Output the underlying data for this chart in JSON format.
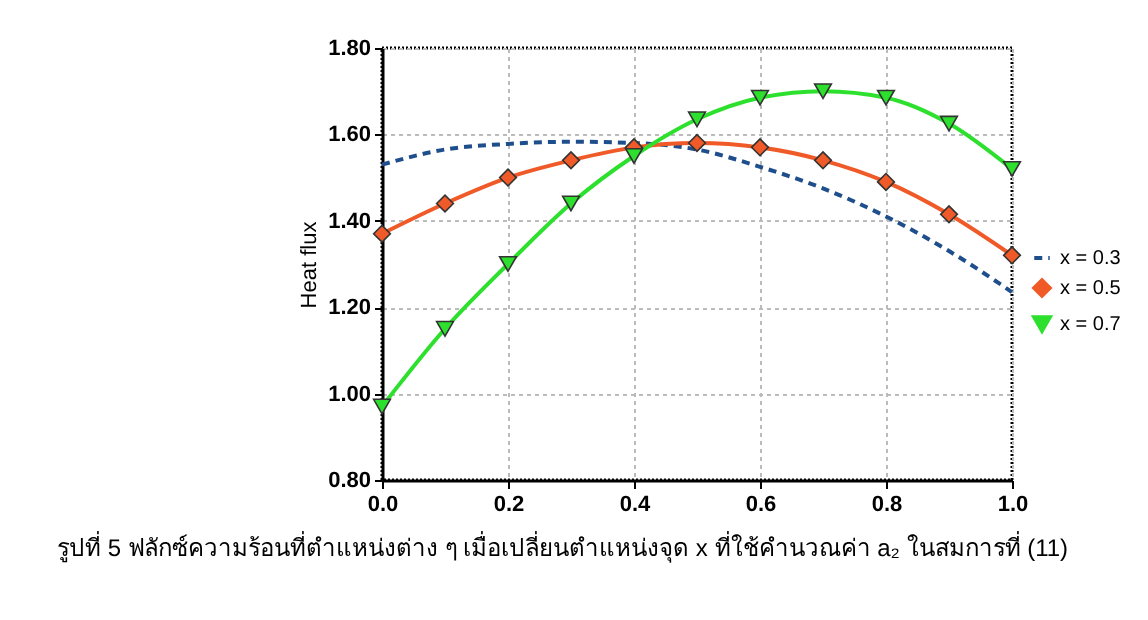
{
  "chart_data": {
    "type": "line",
    "ylabel": "Heat flux",
    "x": [
      0.0,
      0.1,
      0.2,
      0.3,
      0.4,
      0.5,
      0.6,
      0.7,
      0.8,
      0.9,
      1.0
    ],
    "series": [
      {
        "name": "x = 0.3",
        "color": "#1f4e8c",
        "line_style": "dashed",
        "marker": "none",
        "values": [
          1.53,
          1.565,
          1.578,
          1.583,
          1.58,
          1.565,
          1.525,
          1.475,
          1.41,
          1.33,
          1.235
        ]
      },
      {
        "name": "x = 0.5",
        "color": "#f05a28",
        "line_style": "solid",
        "marker": "diamond",
        "values": [
          1.37,
          1.44,
          1.5,
          1.54,
          1.57,
          1.58,
          1.57,
          1.54,
          1.49,
          1.415,
          1.32
        ]
      },
      {
        "name": "x = 0.7",
        "color": "#2de02d",
        "line_style": "solid",
        "marker": "triangle-down",
        "values": [
          0.97,
          1.15,
          1.3,
          1.44,
          1.55,
          1.635,
          1.685,
          1.7,
          1.685,
          1.625,
          1.52
        ]
      }
    ],
    "xlim": [
      0.0,
      1.0
    ],
    "xticks": [
      {
        "value": 0.0,
        "label": "0.0"
      },
      {
        "value": 0.2,
        "label": "0.2"
      },
      {
        "value": 0.4,
        "label": "0.4"
      },
      {
        "value": 0.6,
        "label": "0.6"
      },
      {
        "value": 0.8,
        "label": "0.8"
      },
      {
        "value": 1.0,
        "label": "1.0"
      }
    ],
    "ylim": [
      0.8,
      1.8
    ],
    "yticks": [
      {
        "value": 0.8,
        "label": "0.80"
      },
      {
        "value": 1.0,
        "label": "1.00"
      },
      {
        "value": 1.2,
        "label": "1.20"
      },
      {
        "value": 1.4,
        "label": "1.40"
      },
      {
        "value": 1.6,
        "label": "1.60"
      },
      {
        "value": 1.8,
        "label": "1.80"
      }
    ],
    "grid": true,
    "legend": "right",
    "annotations": [
      "รูปที่ 5  ฟลักซ์ความร้อนที่ตำแหน่งต่าง ๆ เมื่อเปลี่ยนตำแหน่งจุด x ที่ใช้คำนวณค่า a₂ ในสมการที่ (11)"
    ]
  }
}
